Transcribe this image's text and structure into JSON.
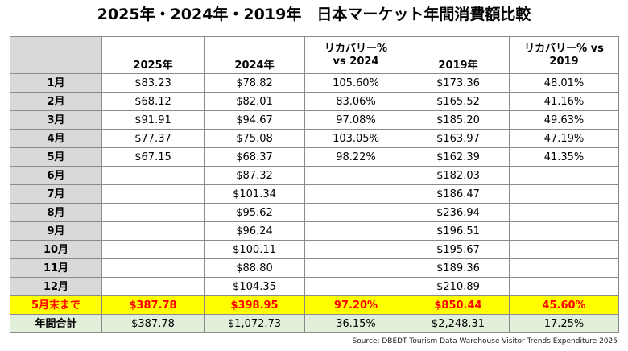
{
  "title": "2025年・2024年・2019年　日本マーケット年間消費額比較",
  "table": {
    "headers": [
      "",
      "2025年",
      "2024年",
      "リカバリー% vs 2024",
      "2019年",
      "リカバリー% vs 2019"
    ],
    "rows": [
      {
        "label": "1月",
        "cells": [
          "$83.23",
          "$78.82",
          "105.60%",
          "$173.36",
          "48.01%"
        ]
      },
      {
        "label": "2月",
        "cells": [
          "$68.12",
          "$82.01",
          "83.06%",
          "$165.52",
          "41.16%"
        ]
      },
      {
        "label": "3月",
        "cells": [
          "$91.91",
          "$94.67",
          "97.08%",
          "$185.20",
          "49.63%"
        ]
      },
      {
        "label": "4月",
        "cells": [
          "$77.37",
          "$75.08",
          "103.05%",
          "$163.97",
          "47.19%"
        ]
      },
      {
        "label": "5月",
        "cells": [
          "$67.15",
          "$68.37",
          "98.22%",
          "$162.39",
          "41.35%"
        ]
      },
      {
        "label": "6月",
        "cells": [
          "",
          "$87.32",
          "",
          "$182.03",
          ""
        ]
      },
      {
        "label": "7月",
        "cells": [
          "",
          "$101.34",
          "",
          "$186.47",
          ""
        ]
      },
      {
        "label": "8月",
        "cells": [
          "",
          "$95.62",
          "",
          "$236.94",
          ""
        ]
      },
      {
        "label": "9月",
        "cells": [
          "",
          "$96.24",
          "",
          "$196.51",
          ""
        ]
      },
      {
        "label": "10月",
        "cells": [
          "",
          "$100.11",
          "",
          "$195.67",
          ""
        ]
      },
      {
        "label": "11月",
        "cells": [
          "",
          "$88.80",
          "",
          "$189.36",
          ""
        ]
      },
      {
        "label": "12月",
        "cells": [
          "",
          "$104.35",
          "",
          "$210.89",
          ""
        ]
      }
    ],
    "ytd": {
      "label": "5月末まで",
      "cells": [
        "$387.78",
        "$398.95",
        "97.20%",
        "$850.44",
        "45.60%"
      ]
    },
    "annual": {
      "label": "年間合計",
      "cells": [
        "$387.78",
        "$1,072.73",
        "36.15%",
        "$2,248.31",
        "17.25%"
      ]
    }
  },
  "source": "Source: DBEDT Tourism Data Warehouse Visitor Trends Expenditure 2025",
  "colors": {
    "highlight_row": "#ffff00",
    "highlight_text": "#ff0000",
    "annual_row": "#e2efda",
    "header_gray": "#d9d9d9"
  }
}
